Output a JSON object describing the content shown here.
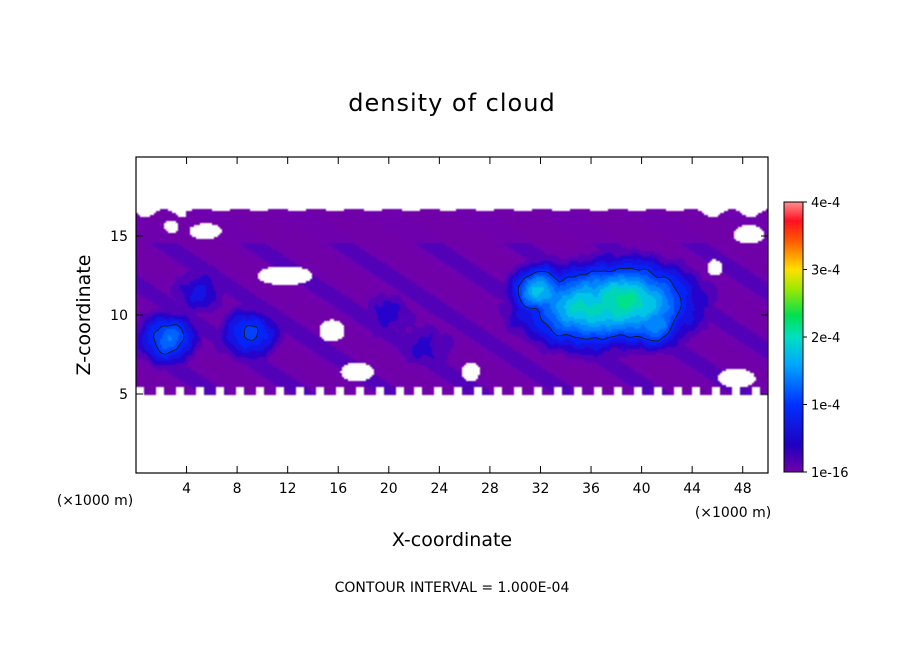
{
  "chart_data": {
    "type": "heatmap",
    "title": "density of cloud",
    "xlabel": "X-coordinate",
    "ylabel": "Z-coordinate",
    "x_unit": "(×1000 m)",
    "z_unit": "(×1000 m)",
    "xlim": [
      0,
      50
    ],
    "ylim": [
      0,
      20
    ],
    "x_ticks": [
      "4",
      "8",
      "12",
      "16",
      "20",
      "24",
      "28",
      "32",
      "36",
      "40",
      "44",
      "48"
    ],
    "y_ticks": [
      "5",
      "10",
      "15"
    ],
    "colorbar": {
      "range": [
        0,
        0.0004
      ],
      "tick_labels": [
        "1e-16",
        "1e-4",
        "2e-4",
        "3e-4",
        "4e-4"
      ]
    },
    "footnote": "CONTOUR INTERVAL = 1.000E-04",
    "contour_level": 0.0001,
    "field": {
      "z_bottom": 5,
      "z_top": 16.7,
      "features": [
        {
          "x": 38.5,
          "z": 10.8,
          "value": 0.000205
        },
        {
          "x": 36,
          "z": 10.5,
          "value": 0.00019
        },
        {
          "x": 32,
          "z": 11.5,
          "value": 0.00017
        },
        {
          "x": 41,
          "z": 9.5,
          "value": 0.00015
        },
        {
          "x": 2.5,
          "z": 8.5,
          "value": 0.00013
        },
        {
          "x": 9,
          "z": 8.8,
          "value": 0.00011
        },
        {
          "x": 5,
          "z": 11.5,
          "value": 7e-05
        },
        {
          "x": 20,
          "z": 10,
          "value": 6e-05
        },
        {
          "x": 23,
          "z": 8,
          "value": 6e-05
        }
      ]
    },
    "colors": {
      "base": "#7b00b0",
      "low": "#1400c8",
      "mid": "#00a0ff",
      "high": "#00e850",
      "peak": "#ff7f7f"
    }
  }
}
